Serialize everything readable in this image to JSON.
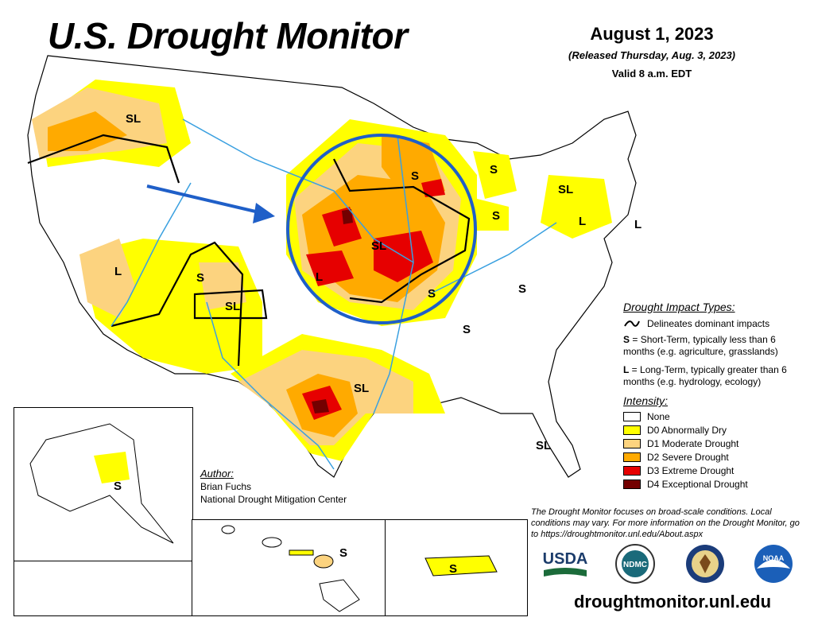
{
  "header": {
    "title": "U.S. Drought Monitor",
    "date": "August 1, 2023",
    "released": "(Released Thursday, Aug. 3, 2023)",
    "valid": "Valid 8 a.m. EDT"
  },
  "colors": {
    "none": "#ffffff",
    "d0": "#ffff00",
    "d1": "#fcd37f",
    "d2": "#ffaa00",
    "d3": "#e60000",
    "d4": "#730000",
    "circle": "#1f5fc8",
    "arrow": "#1f5fc8",
    "rivers": "#3aa0e0"
  },
  "impact_labels": {
    "sl_northwest": "SL",
    "s_upper_midwest": "S",
    "s_michigan": "S",
    "sl_new_york": "SL",
    "l_pennsylvania": "L",
    "l_new_jersey": "L",
    "s_ohio": "S",
    "sl_midwest_center": "SL",
    "l_kansas": "L",
    "s_missouri": "S",
    "s_kentucky": "S",
    "s_alabama": "S",
    "l_nevada": "L",
    "s_colorado": "S",
    "sl_new_mexico": "SL",
    "sl_texas": "SL",
    "sl_florida": "SL",
    "s_alaska": "S",
    "s_hawaii": "S",
    "s_puerto_rico": "S"
  },
  "legend": {
    "impact_header": "Drought Impact Types:",
    "delineates": "Delineates dominant impacts",
    "s_key": "S",
    "s_desc": " = Short-Term, typically less than 6 months (e.g. agriculture, grasslands)",
    "l_key": "L",
    "l_desc": " = Long-Term, typically greater than 6 months (e.g. hydrology, ecology)",
    "intensity_header": "Intensity:",
    "intensity": [
      {
        "label": "None",
        "color": "#ffffff"
      },
      {
        "label": "D0 Abnormally Dry",
        "color": "#ffff00"
      },
      {
        "label": "D1 Moderate Drought",
        "color": "#fcd37f"
      },
      {
        "label": "D2 Severe Drought",
        "color": "#ffaa00"
      },
      {
        "label": "D3 Extreme Drought",
        "color": "#e60000"
      },
      {
        "label": "D4 Exceptional Drought",
        "color": "#730000"
      }
    ]
  },
  "author": {
    "label": "Author:",
    "name": "Brian Fuchs",
    "org": "National Drought Mitigation Center"
  },
  "note": "The Drought Monitor focuses on broad-scale conditions. Local conditions may vary. For more information on the Drought Monitor, go to https://droughtmonitor.unl.edu/About.aspx",
  "url": "droughtmonitor.unl.edu",
  "logos": {
    "usda": "USDA",
    "ndmc": "NDMC",
    "noaa": "NOAA"
  }
}
